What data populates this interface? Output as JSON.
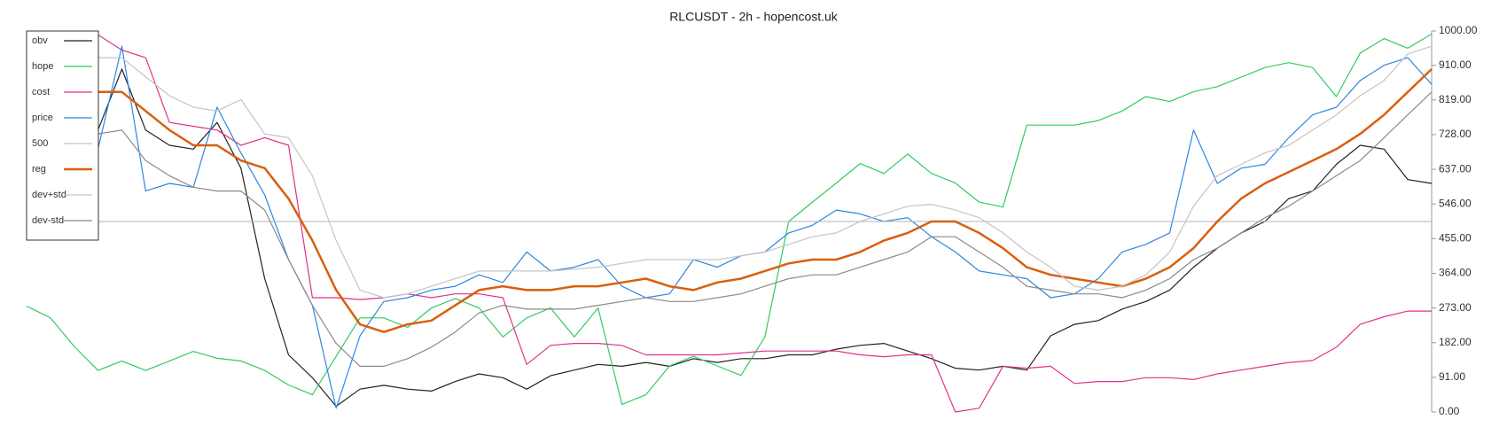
{
  "chart_data": {
    "type": "line",
    "title": "RLCUSDT - 2h - hopencost.uk",
    "ylim": [
      0,
      1000
    ],
    "yticks": [
      {
        "value": 0,
        "label": "0.00"
      },
      {
        "value": 91,
        "label": "91.00"
      },
      {
        "value": 182,
        "label": "182.00"
      },
      {
        "value": 273,
        "label": "273.00"
      },
      {
        "value": 364,
        "label": "364.00"
      },
      {
        "value": 455,
        "label": "455.00"
      },
      {
        "value": 546,
        "label": "546.00"
      },
      {
        "value": 637,
        "label": "637.00"
      },
      {
        "value": 728,
        "label": "728.00"
      },
      {
        "value": 819,
        "label": "819.00"
      },
      {
        "value": 910,
        "label": "910.00"
      },
      {
        "value": 1000,
        "label": "1000.00"
      }
    ],
    "legend": "upper left",
    "series": [
      {
        "name": "obv",
        "color": "#222222",
        "width": 1.2,
        "values": [
          null,
          null,
          null,
          740,
          900,
          740,
          700,
          690,
          760,
          640,
          350,
          150,
          90,
          15,
          60,
          70,
          60,
          55,
          80,
          100,
          90,
          60,
          95,
          110,
          125,
          120,
          130,
          120,
          140,
          130,
          140,
          140,
          150,
          150,
          165,
          175,
          180,
          160,
          140,
          115,
          110,
          120,
          110,
          200,
          230,
          240,
          270,
          290,
          320,
          380,
          430,
          470,
          500,
          560,
          580,
          650,
          700,
          690,
          610,
          600
        ]
      },
      {
        "name": "hope",
        "color": "#2ecc5f",
        "width": 1.2,
        "values": [
          278,
          247,
          172,
          109,
          134,
          109,
          134,
          159,
          141,
          134,
          109,
          71,
          45,
          146,
          247,
          247,
          222,
          273,
          298,
          273,
          197,
          247,
          273,
          197,
          273,
          20,
          45,
          121,
          146,
          121,
          96,
          197,
          500,
          551,
          601,
          652,
          626,
          677,
          626,
          601,
          551,
          538,
          753,
          753,
          753,
          765,
          790,
          828,
          815,
          841,
          854,
          879,
          904,
          917,
          904,
          828,
          942,
          980,
          955,
          992
        ]
      },
      {
        "name": "cost",
        "color": "#e0318a",
        "width": 1.2,
        "values": [
          null,
          null,
          null,
          990,
          950,
          930,
          760,
          750,
          740,
          700,
          720,
          700,
          300,
          300,
          295,
          300,
          310,
          300,
          310,
          310,
          300,
          125,
          175,
          180,
          180,
          175,
          150,
          150,
          150,
          150,
          155,
          160,
          160,
          160,
          160,
          150,
          145,
          150,
          150,
          0,
          10,
          120,
          115,
          120,
          75,
          80,
          80,
          90,
          90,
          85,
          100,
          110,
          120,
          130,
          135,
          170,
          230,
          250,
          265,
          265
        ]
      },
      {
        "name": "price",
        "color": "#2f86e0",
        "width": 1.2,
        "values": [
          null,
          null,
          null,
          690,
          960,
          580,
          600,
          590,
          800,
          680,
          570,
          400,
          280,
          10,
          200,
          290,
          300,
          320,
          330,
          360,
          340,
          420,
          370,
          380,
          400,
          330,
          300,
          310,
          400,
          380,
          410,
          420,
          470,
          490,
          530,
          520,
          500,
          510,
          460,
          420,
          370,
          360,
          350,
          300,
          310,
          350,
          420,
          440,
          470,
          740,
          600,
          640,
          650,
          720,
          780,
          800,
          870,
          910,
          930,
          860
        ]
      },
      {
        "name": "500",
        "color": "#b5b5b5",
        "width": 1,
        "values": [
          500,
          500,
          500,
          500,
          500,
          500,
          500,
          500,
          500,
          500,
          500,
          500,
          500,
          500,
          500,
          500,
          500,
          500,
          500,
          500,
          500,
          500,
          500,
          500,
          500,
          500,
          500,
          500,
          500,
          500,
          500,
          500,
          500,
          500,
          500,
          500,
          500,
          500,
          500,
          500,
          500,
          500,
          500,
          500,
          500,
          500,
          500,
          500,
          500,
          500,
          500,
          500,
          500,
          500,
          500,
          500,
          500,
          500,
          500,
          500
        ]
      },
      {
        "name": "reg",
        "color": "#d95f0e",
        "width": 2.5,
        "values": [
          null,
          null,
          null,
          840,
          840,
          790,
          740,
          700,
          700,
          660,
          640,
          560,
          450,
          320,
          230,
          210,
          230,
          240,
          280,
          320,
          330,
          320,
          320,
          330,
          330,
          340,
          350,
          330,
          320,
          340,
          350,
          370,
          390,
          400,
          400,
          420,
          450,
          470,
          500,
          500,
          470,
          430,
          380,
          360,
          350,
          340,
          330,
          350,
          380,
          430,
          500,
          560,
          600,
          630,
          660,
          690,
          730,
          780,
          840,
          900
        ]
      },
      {
        "name": "dev+std",
        "color": "#c4c4c4",
        "width": 1.2,
        "values": [
          null,
          null,
          null,
          930,
          930,
          880,
          830,
          800,
          790,
          820,
          730,
          720,
          620,
          450,
          320,
          300,
          310,
          330,
          350,
          370,
          370,
          370,
          370,
          375,
          380,
          390,
          400,
          400,
          400,
          400,
          410,
          420,
          440,
          460,
          470,
          500,
          520,
          540,
          545,
          530,
          510,
          470,
          420,
          380,
          330,
          320,
          330,
          360,
          420,
          540,
          620,
          650,
          680,
          700,
          740,
          780,
          830,
          870,
          940,
          960
        ]
      },
      {
        "name": "dev-std",
        "color": "#8a8a8a",
        "width": 1.2,
        "values": [
          null,
          null,
          null,
          730,
          740,
          660,
          620,
          590,
          580,
          580,
          530,
          400,
          280,
          180,
          120,
          120,
          140,
          170,
          210,
          260,
          280,
          270,
          270,
          270,
          280,
          290,
          300,
          290,
          290,
          300,
          310,
          330,
          350,
          360,
          360,
          380,
          400,
          420,
          460,
          460,
          420,
          380,
          330,
          320,
          310,
          310,
          300,
          320,
          350,
          400,
          430,
          470,
          510,
          540,
          580,
          620,
          660,
          720,
          780,
          840
        ]
      }
    ]
  }
}
